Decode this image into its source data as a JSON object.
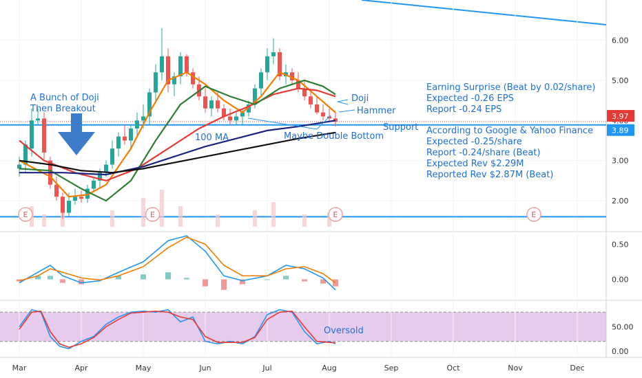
{
  "chart_data": {
    "type": "candlestick",
    "x_months": [
      "Mar",
      "Apr",
      "May",
      "Jun",
      "Jul",
      "Aug",
      "Sep",
      "Oct",
      "Nov",
      "Dec"
    ],
    "price_axis": {
      "ticks": [
        "2.00",
        "3.00",
        "4.00",
        "5.00",
        "6.00"
      ],
      "tick_values": [
        2,
        3,
        4,
        5,
        6
      ],
      "ylim": [
        1.35,
        6.9
      ],
      "last_price": "3.97",
      "support_price": "3.89",
      "last_price_value": 3.97,
      "support_value": 3.89,
      "last_price_color": "#e53935",
      "support_color": "#2196f3"
    },
    "horizontal_lines": [
      {
        "name": "support",
        "value": 3.89,
        "color": "#2196f3"
      },
      {
        "name": "bottom-support",
        "value": 1.6,
        "color": "#2196f3"
      }
    ],
    "earnings_markers": {
      "label": "E",
      "months": [
        0.1,
        2.15,
        5.1,
        8.3
      ]
    },
    "candles": [
      {
        "m": 0.0,
        "o": 2.8,
        "h": 3.1,
        "l": 2.6,
        "c": 2.9
      },
      {
        "m": 0.1,
        "o": 2.9,
        "h": 3.5,
        "l": 2.7,
        "c": 3.4
      },
      {
        "m": 0.2,
        "o": 3.3,
        "h": 4.3,
        "l": 3.1,
        "c": 4.0
      },
      {
        "m": 0.3,
        "o": 4.0,
        "h": 4.3,
        "l": 3.9,
        "c": 4.05
      },
      {
        "m": 0.4,
        "o": 4.05,
        "h": 4.2,
        "l": 3.0,
        "c": 3.2
      },
      {
        "m": 0.5,
        "o": 3.0,
        "h": 3.1,
        "l": 2.3,
        "c": 2.4
      },
      {
        "m": 0.6,
        "o": 2.4,
        "h": 2.6,
        "l": 2.0,
        "c": 2.1
      },
      {
        "m": 0.7,
        "o": 2.1,
        "h": 2.2,
        "l": 1.55,
        "c": 1.7
      },
      {
        "m": 0.8,
        "o": 1.7,
        "h": 2.2,
        "l": 1.6,
        "c": 2.0
      },
      {
        "m": 0.9,
        "o": 2.0,
        "h": 2.3,
        "l": 1.9,
        "c": 2.1
      },
      {
        "m": 1.0,
        "o": 2.1,
        "h": 2.25,
        "l": 1.95,
        "c": 2.05
      },
      {
        "m": 1.1,
        "o": 2.05,
        "h": 2.4,
        "l": 1.95,
        "c": 2.3
      },
      {
        "m": 1.2,
        "o": 2.3,
        "h": 2.6,
        "l": 2.2,
        "c": 2.5
      },
      {
        "m": 1.3,
        "o": 2.5,
        "h": 2.8,
        "l": 2.3,
        "c": 2.7
      },
      {
        "m": 1.4,
        "o": 2.7,
        "h": 3.0,
        "l": 2.6,
        "c": 2.9
      },
      {
        "m": 1.5,
        "o": 2.9,
        "h": 3.5,
        "l": 2.8,
        "c": 3.3
      },
      {
        "m": 1.6,
        "o": 3.3,
        "h": 3.7,
        "l": 3.1,
        "c": 3.6
      },
      {
        "m": 1.7,
        "o": 3.6,
        "h": 3.9,
        "l": 3.4,
        "c": 3.5
      },
      {
        "m": 1.8,
        "o": 3.5,
        "h": 3.9,
        "l": 3.3,
        "c": 3.8
      },
      {
        "m": 1.9,
        "o": 3.8,
        "h": 4.2,
        "l": 3.6,
        "c": 4.0
      },
      {
        "m": 2.0,
        "o": 4.0,
        "h": 4.4,
        "l": 3.8,
        "c": 4.1
      },
      {
        "m": 2.1,
        "o": 4.1,
        "h": 4.8,
        "l": 3.9,
        "c": 4.7
      },
      {
        "m": 2.2,
        "o": 4.7,
        "h": 5.4,
        "l": 4.5,
        "c": 5.2
      },
      {
        "m": 2.3,
        "o": 5.2,
        "h": 6.3,
        "l": 5.0,
        "c": 5.6
      },
      {
        "m": 2.4,
        "o": 5.6,
        "h": 5.8,
        "l": 4.7,
        "c": 4.9
      },
      {
        "m": 2.5,
        "o": 4.9,
        "h": 5.2,
        "l": 4.6,
        "c": 5.1
      },
      {
        "m": 2.6,
        "o": 5.1,
        "h": 5.7,
        "l": 4.9,
        "c": 5.6
      },
      {
        "m": 2.7,
        "o": 5.6,
        "h": 5.65,
        "l": 5.1,
        "c": 5.2
      },
      {
        "m": 2.8,
        "o": 5.2,
        "h": 5.3,
        "l": 4.8,
        "c": 4.9
      },
      {
        "m": 2.9,
        "o": 4.9,
        "h": 5.1,
        "l": 4.5,
        "c": 4.6
      },
      {
        "m": 3.0,
        "o": 4.6,
        "h": 4.8,
        "l": 4.2,
        "c": 4.3
      },
      {
        "m": 3.1,
        "o": 4.3,
        "h": 4.6,
        "l": 4.1,
        "c": 4.5
      },
      {
        "m": 3.2,
        "o": 4.5,
        "h": 4.7,
        "l": 4.2,
        "c": 4.3
      },
      {
        "m": 3.3,
        "o": 4.3,
        "h": 4.4,
        "l": 4.0,
        "c": 4.1
      },
      {
        "m": 3.4,
        "o": 4.1,
        "h": 4.3,
        "l": 3.9,
        "c": 4.0
      },
      {
        "m": 3.5,
        "o": 4.0,
        "h": 4.2,
        "l": 3.9,
        "c": 4.1
      },
      {
        "m": 3.6,
        "o": 4.1,
        "h": 4.3,
        "l": 3.9,
        "c": 4.2
      },
      {
        "m": 3.7,
        "o": 4.2,
        "h": 4.5,
        "l": 4.1,
        "c": 4.4
      },
      {
        "m": 3.8,
        "o": 4.4,
        "h": 4.9,
        "l": 4.3,
        "c": 4.8
      },
      {
        "m": 3.9,
        "o": 4.8,
        "h": 5.3,
        "l": 4.6,
        "c": 5.2
      },
      {
        "m": 4.0,
        "o": 5.2,
        "h": 5.8,
        "l": 5.0,
        "c": 5.6
      },
      {
        "m": 4.1,
        "o": 5.6,
        "h": 6.05,
        "l": 5.4,
        "c": 5.7
      },
      {
        "m": 4.2,
        "o": 5.7,
        "h": 5.8,
        "l": 5.0,
        "c": 5.1
      },
      {
        "m": 4.3,
        "o": 5.1,
        "h": 5.4,
        "l": 4.9,
        "c": 5.2
      },
      {
        "m": 4.4,
        "o": 5.2,
        "h": 5.3,
        "l": 4.9,
        "c": 5.0
      },
      {
        "m": 4.5,
        "o": 5.0,
        "h": 5.2,
        "l": 4.7,
        "c": 4.8
      },
      {
        "m": 4.6,
        "o": 4.8,
        "h": 5.0,
        "l": 4.5,
        "c": 4.6
      },
      {
        "m": 4.7,
        "o": 4.6,
        "h": 4.75,
        "l": 4.3,
        "c": 4.4
      },
      {
        "m": 4.8,
        "o": 4.4,
        "h": 4.6,
        "l": 4.15,
        "c": 4.2
      },
      {
        "m": 4.9,
        "o": 4.2,
        "h": 4.4,
        "l": 4.0,
        "c": 4.1
      },
      {
        "m": 5.0,
        "o": 4.1,
        "h": 4.3,
        "l": 3.95,
        "c": 4.05
      },
      {
        "m": 5.1,
        "o": 4.05,
        "h": 4.2,
        "l": 3.85,
        "c": 3.97
      }
    ],
    "moving_averages": [
      {
        "name": "ma-orange",
        "color": "#f57c00",
        "points": [
          [
            0,
            3.0
          ],
          [
            0.5,
            2.6
          ],
          [
            0.8,
            2.1
          ],
          [
            1.1,
            2.15
          ],
          [
            1.4,
            2.4
          ],
          [
            1.8,
            3.3
          ],
          [
            2.1,
            4.2
          ],
          [
            2.4,
            5.0
          ],
          [
            2.7,
            5.2
          ],
          [
            3.0,
            4.9
          ],
          [
            3.3,
            4.5
          ],
          [
            3.6,
            4.2
          ],
          [
            3.9,
            4.6
          ],
          [
            4.2,
            5.2
          ],
          [
            4.5,
            5.0
          ],
          [
            4.8,
            4.6
          ],
          [
            5.1,
            4.2
          ]
        ]
      },
      {
        "name": "ma-red",
        "color": "#e53935",
        "points": [
          [
            0,
            3.5
          ],
          [
            0.4,
            3.0
          ],
          [
            0.9,
            2.7
          ],
          [
            1.4,
            2.5
          ],
          [
            1.9,
            2.8
          ],
          [
            2.4,
            3.3
          ],
          [
            2.9,
            3.8
          ],
          [
            3.3,
            4.1
          ],
          [
            3.7,
            4.35
          ],
          [
            4.1,
            4.65
          ],
          [
            4.5,
            4.8
          ],
          [
            4.8,
            4.75
          ],
          [
            5.1,
            4.6
          ]
        ]
      },
      {
        "name": "ma-green",
        "color": "#2e7d32",
        "points": [
          [
            0,
            2.8
          ],
          [
            0.5,
            2.75
          ],
          [
            1.0,
            2.3
          ],
          [
            1.4,
            2.0
          ],
          [
            1.8,
            2.5
          ],
          [
            2.2,
            3.5
          ],
          [
            2.6,
            4.4
          ],
          [
            3.0,
            4.85
          ],
          [
            3.4,
            4.6
          ],
          [
            3.8,
            4.4
          ],
          [
            4.2,
            4.8
          ],
          [
            4.6,
            5.0
          ],
          [
            4.9,
            4.85
          ],
          [
            5.1,
            4.65
          ]
        ]
      },
      {
        "name": "ma-100-blue",
        "color": "#1a237e",
        "points": [
          [
            0,
            2.7
          ],
          [
            0.7,
            2.7
          ],
          [
            1.4,
            2.65
          ],
          [
            2.0,
            2.85
          ],
          [
            2.5,
            3.1
          ],
          [
            3.0,
            3.35
          ],
          [
            3.5,
            3.55
          ],
          [
            4.0,
            3.75
          ],
          [
            4.5,
            3.85
          ],
          [
            5.1,
            4.0
          ]
        ]
      },
      {
        "name": "ma-black",
        "color": "#111111",
        "points": [
          [
            0,
            3.0
          ],
          [
            0.5,
            2.9
          ],
          [
            1.0,
            2.75
          ],
          [
            1.5,
            2.7
          ],
          [
            2.0,
            2.8
          ],
          [
            2.5,
            2.95
          ],
          [
            3.0,
            3.1
          ],
          [
            3.5,
            3.25
          ],
          [
            4.0,
            3.4
          ],
          [
            4.5,
            3.55
          ],
          [
            5.1,
            3.7
          ]
        ]
      }
    ],
    "volume": [
      {
        "m": 0.2,
        "v": 0.5
      },
      {
        "m": 0.4,
        "v": 0.3
      },
      {
        "m": 0.7,
        "v": 0.6
      },
      {
        "m": 1.5,
        "v": 0.4
      },
      {
        "m": 2.0,
        "v": 0.7
      },
      {
        "m": 2.3,
        "v": 0.9
      },
      {
        "m": 2.6,
        "v": 0.5
      },
      {
        "m": 3.2,
        "v": 0.3
      },
      {
        "m": 3.8,
        "v": 0.4
      },
      {
        "m": 4.1,
        "v": 0.6
      },
      {
        "m": 4.6,
        "v": 0.3
      },
      {
        "m": 5.0,
        "v": 0.35
      }
    ],
    "annotations": {
      "doji_breakout_1": "A Bunch of Doji",
      "doji_breakout_2": "Then Breakout",
      "ma_100": "100 MA",
      "double_bottom": "Maybe Double Bottom",
      "doji": "Doji",
      "hammer": "Hammer",
      "support": "Support",
      "oversold": "Oversold",
      "notes": [
        "Earning Surprise (Beat by 0.02/share)",
        "Expected -0.26 EPS",
        "Report -0.24 EPS",
        "",
        "According to Google & Yahoo Finance",
        "Expected -0.25/share",
        "Report -0.24/share (Beat)",
        "Expected Rev $2.29M",
        "Reported Rev $2.87M (Beat)"
      ]
    },
    "macd": {
      "ticks": [
        "0.50",
        "0.00"
      ],
      "tick_values": [
        0.5,
        0.0
      ],
      "ylim": [
        -0.25,
        0.65
      ],
      "macd_line": [
        [
          0,
          -0.05
        ],
        [
          0.3,
          0.1
        ],
        [
          0.5,
          0.2
        ],
        [
          0.7,
          0.05
        ],
        [
          1.0,
          -0.05
        ],
        [
          1.3,
          -0.02
        ],
        [
          1.6,
          0.1
        ],
        [
          2.0,
          0.25
        ],
        [
          2.4,
          0.55
        ],
        [
          2.7,
          0.62
        ],
        [
          3.0,
          0.4
        ],
        [
          3.3,
          0.05
        ],
        [
          3.6,
          -0.02
        ],
        [
          4.0,
          0.05
        ],
        [
          4.3,
          0.2
        ],
        [
          4.6,
          0.15
        ],
        [
          4.9,
          0.02
        ],
        [
          5.1,
          -0.15
        ]
      ],
      "signal_line": [
        [
          0,
          -0.02
        ],
        [
          0.3,
          0.05
        ],
        [
          0.5,
          0.15
        ],
        [
          0.7,
          0.1
        ],
        [
          1.0,
          0.02
        ],
        [
          1.3,
          -0.01
        ],
        [
          1.6,
          0.05
        ],
        [
          2.0,
          0.18
        ],
        [
          2.4,
          0.45
        ],
        [
          2.7,
          0.6
        ],
        [
          3.0,
          0.5
        ],
        [
          3.3,
          0.2
        ],
        [
          3.6,
          0.05
        ],
        [
          4.0,
          0.05
        ],
        [
          4.3,
          0.15
        ],
        [
          4.6,
          0.18
        ],
        [
          4.9,
          0.08
        ],
        [
          5.1,
          -0.05
        ]
      ],
      "macd_color": "#2196f3",
      "signal_color": "#f57c00"
    },
    "stochastic": {
      "ticks": [
        "50.00",
        "0.00"
      ],
      "tick_values": [
        50,
        0
      ],
      "ylim": [
        -10,
        100
      ],
      "upper_band": 80,
      "lower_band": 20,
      "band_color": "#e1bee7",
      "k_line": [
        [
          0,
          50
        ],
        [
          0.2,
          85
        ],
        [
          0.35,
          80
        ],
        [
          0.5,
          30
        ],
        [
          0.65,
          10
        ],
        [
          0.8,
          5
        ],
        [
          1.0,
          20
        ],
        [
          1.2,
          30
        ],
        [
          1.4,
          55
        ],
        [
          1.6,
          70
        ],
        [
          1.8,
          80
        ],
        [
          2.0,
          82
        ],
        [
          2.2,
          80
        ],
        [
          2.4,
          85
        ],
        [
          2.6,
          60
        ],
        [
          2.8,
          70
        ],
        [
          3.0,
          20
        ],
        [
          3.2,
          15
        ],
        [
          3.4,
          20
        ],
        [
          3.6,
          15
        ],
        [
          3.8,
          30
        ],
        [
          4.0,
          75
        ],
        [
          4.2,
          85
        ],
        [
          4.4,
          80
        ],
        [
          4.6,
          40
        ],
        [
          4.8,
          15
        ],
        [
          5.0,
          20
        ],
        [
          5.1,
          15
        ]
      ],
      "d_line": [
        [
          0,
          45
        ],
        [
          0.2,
          80
        ],
        [
          0.35,
          82
        ],
        [
          0.5,
          40
        ],
        [
          0.65,
          15
        ],
        [
          0.8,
          8
        ],
        [
          1.0,
          15
        ],
        [
          1.2,
          28
        ],
        [
          1.4,
          50
        ],
        [
          1.6,
          65
        ],
        [
          1.8,
          78
        ],
        [
          2.0,
          80
        ],
        [
          2.2,
          82
        ],
        [
          2.4,
          80
        ],
        [
          2.6,
          70
        ],
        [
          2.8,
          65
        ],
        [
          3.0,
          30
        ],
        [
          3.2,
          18
        ],
        [
          3.4,
          18
        ],
        [
          3.6,
          18
        ],
        [
          3.8,
          28
        ],
        [
          4.0,
          65
        ],
        [
          4.2,
          80
        ],
        [
          4.4,
          82
        ],
        [
          4.6,
          50
        ],
        [
          4.8,
          20
        ],
        [
          5.0,
          18
        ],
        [
          5.1,
          17
        ]
      ],
      "k_color": "#2196f3",
      "d_color": "#e53935"
    }
  }
}
